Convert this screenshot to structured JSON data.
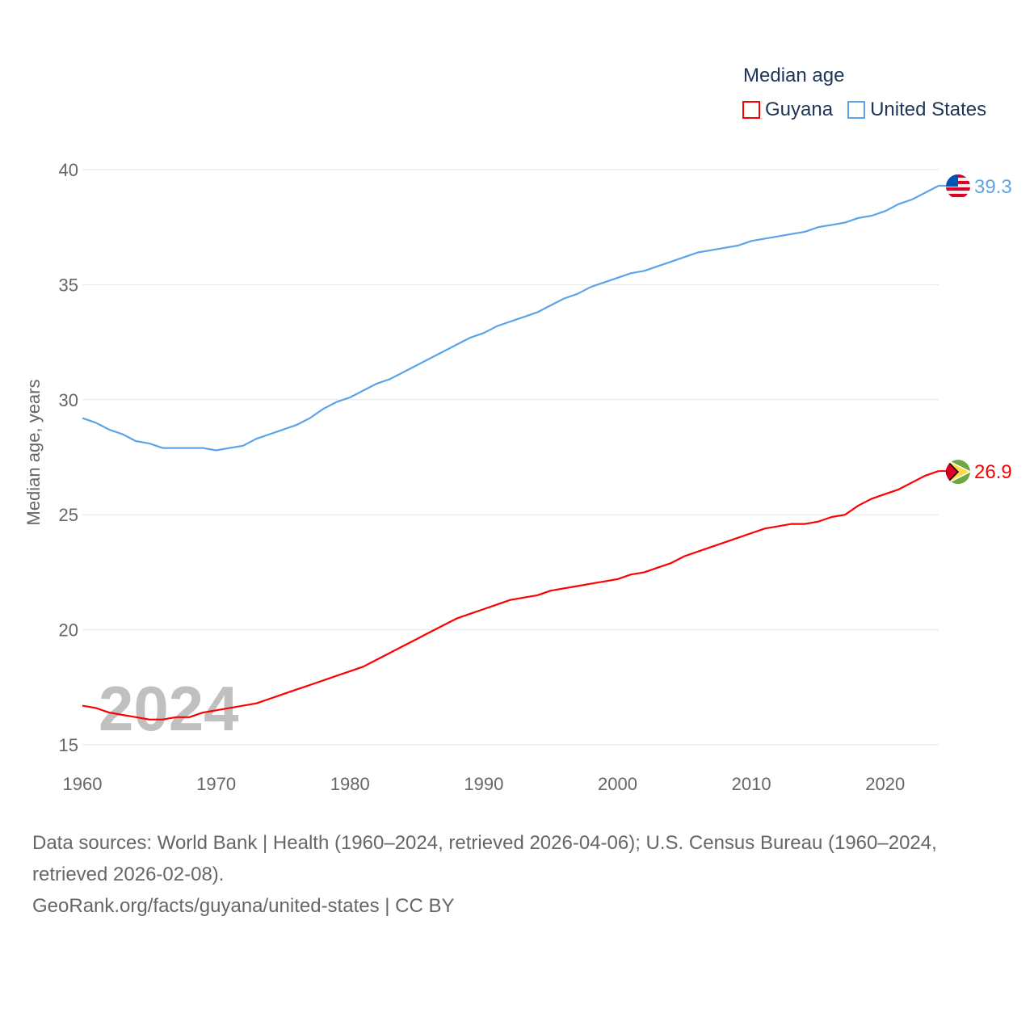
{
  "chart_data": {
    "type": "line",
    "legend_title": "Median age",
    "ylabel": "Median age, years",
    "xlabel": "",
    "xlim": [
      1960,
      2024
    ],
    "ylim": [
      15,
      40
    ],
    "yticks": [
      "15",
      "20",
      "25",
      "30",
      "35",
      "40"
    ],
    "xticks": [
      "1960",
      "1970",
      "1980",
      "1990",
      "2000",
      "2010",
      "2020"
    ],
    "legend_placement": "top-right",
    "watermark_year": "2024",
    "x": [
      1960,
      1961,
      1962,
      1963,
      1964,
      1965,
      1966,
      1967,
      1968,
      1969,
      1970,
      1971,
      1972,
      1973,
      1974,
      1975,
      1976,
      1977,
      1978,
      1979,
      1980,
      1981,
      1982,
      1983,
      1984,
      1985,
      1986,
      1987,
      1988,
      1989,
      1990,
      1991,
      1992,
      1993,
      1994,
      1995,
      1996,
      1997,
      1998,
      1999,
      2000,
      2001,
      2002,
      2003,
      2004,
      2005,
      2006,
      2007,
      2008,
      2009,
      2010,
      2011,
      2012,
      2013,
      2014,
      2015,
      2016,
      2017,
      2018,
      2019,
      2020,
      2021,
      2022,
      2023,
      2024
    ],
    "series": [
      {
        "name": "Guyana",
        "color": "#ff0000",
        "end_label": "26.9",
        "values": [
          16.7,
          16.6,
          16.4,
          16.3,
          16.2,
          16.1,
          16.1,
          16.2,
          16.2,
          16.4,
          16.5,
          16.6,
          16.7,
          16.8,
          17.0,
          17.2,
          17.4,
          17.6,
          17.8,
          18.0,
          18.2,
          18.4,
          18.7,
          19.0,
          19.3,
          19.6,
          19.9,
          20.2,
          20.5,
          20.7,
          20.9,
          21.1,
          21.3,
          21.4,
          21.5,
          21.7,
          21.8,
          21.9,
          22.0,
          22.1,
          22.2,
          22.4,
          22.5,
          22.7,
          22.9,
          23.2,
          23.4,
          23.6,
          23.8,
          24.0,
          24.2,
          24.4,
          24.5,
          24.6,
          24.6,
          24.7,
          24.9,
          25.0,
          25.4,
          25.7,
          25.9,
          26.1,
          26.4,
          26.7,
          26.9
        ]
      },
      {
        "name": "United States",
        "color": "#5ba4ea",
        "end_label": "39.3",
        "values": [
          29.2,
          29.0,
          28.7,
          28.5,
          28.2,
          28.1,
          27.9,
          27.9,
          27.9,
          27.9,
          27.8,
          27.9,
          28.0,
          28.3,
          28.5,
          28.7,
          28.9,
          29.2,
          29.6,
          29.9,
          30.1,
          30.4,
          30.7,
          30.9,
          31.2,
          31.5,
          31.8,
          32.1,
          32.4,
          32.7,
          32.9,
          33.2,
          33.4,
          33.6,
          33.8,
          34.1,
          34.4,
          34.6,
          34.9,
          35.1,
          35.3,
          35.5,
          35.6,
          35.8,
          36.0,
          36.2,
          36.4,
          36.5,
          36.6,
          36.7,
          36.9,
          37.0,
          37.1,
          37.2,
          37.3,
          37.5,
          37.6,
          37.7,
          37.9,
          38.0,
          38.2,
          38.5,
          38.7,
          39.0,
          39.3
        ]
      }
    ]
  },
  "footer": {
    "sources": "Data sources: World Bank | Health (1960–2024, retrieved 2026-04-06); U.S. Census Bureau (1960–2024, retrieved 2026-02-08).",
    "credit": "GeoRank.org/facts/guyana/united-states | CC BY"
  }
}
